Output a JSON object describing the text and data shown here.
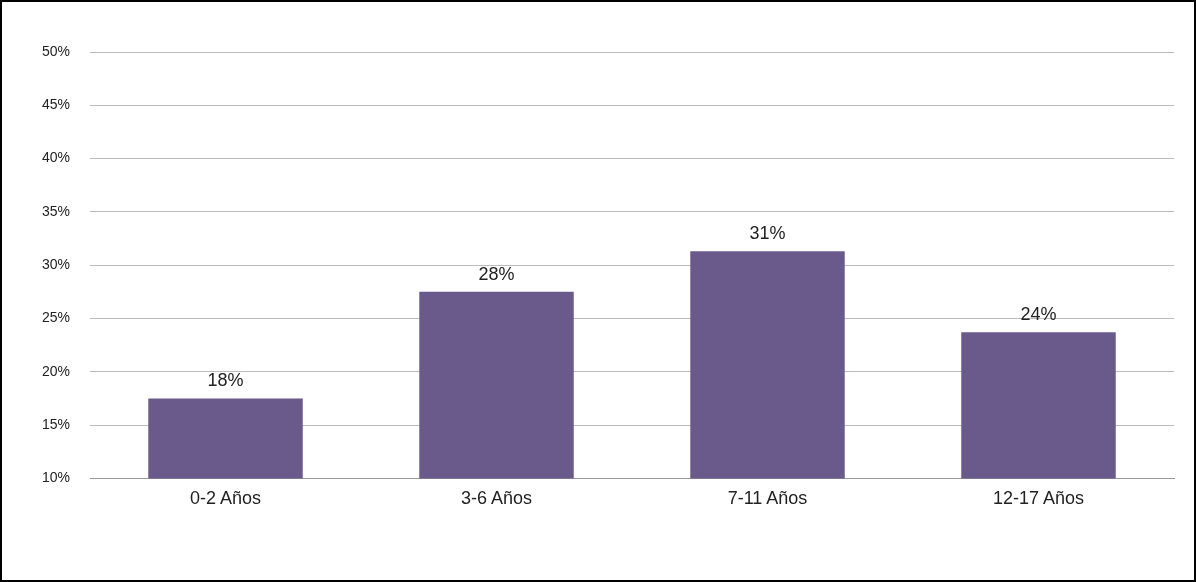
{
  "chart_data": {
    "type": "bar",
    "categories": [
      "0-2 Años",
      "3-6 Años",
      "7-11 Años",
      "12-17 Años"
    ],
    "values": [
      17.5,
      27.5,
      31.3,
      23.7
    ],
    "value_labels": [
      "18%",
      "28%",
      "31%",
      "24%"
    ],
    "color": "#6a5a8c",
    "ylim": [
      10,
      50
    ],
    "yticks": [
      {
        "value": 10,
        "label": "10%"
      },
      {
        "value": 15,
        "label": "15%"
      },
      {
        "value": 20,
        "label": "20%"
      },
      {
        "value": 25,
        "label": "25%"
      },
      {
        "value": 30,
        "label": "30%"
      },
      {
        "value": 35,
        "label": "35%"
      },
      {
        "value": 40,
        "label": "40%"
      },
      {
        "value": 45,
        "label": "45%"
      },
      {
        "value": 50,
        "label": "50%"
      }
    ],
    "grid": "y"
  }
}
